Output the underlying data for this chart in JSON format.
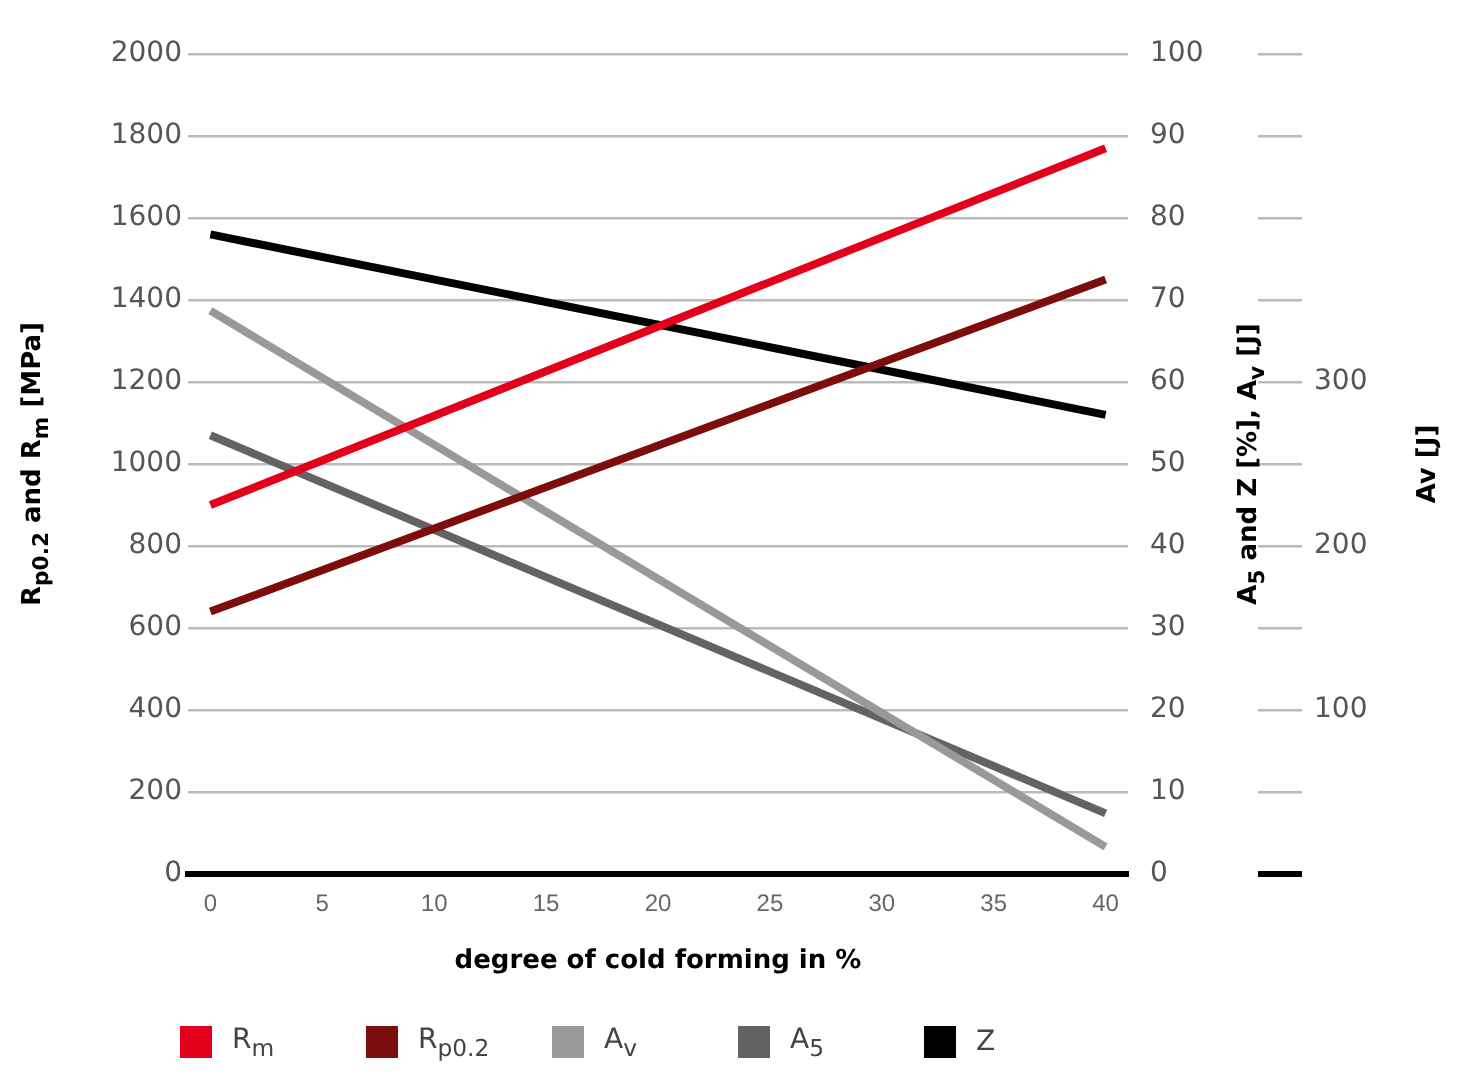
{
  "chart_data": {
    "type": "line",
    "xlabel": "degree of cold forming in %",
    "ylabel": "R$_{p0.2}$ and R$_{m}$ [MPa]",
    "y2label": "A$_{5}$ and Z [%], A$_{v}$ [J]",
    "y3label": "Av [J]",
    "xlim": [
      -1,
      41
    ],
    "xticks": [
      0,
      5,
      10,
      15,
      20,
      25,
      30,
      35,
      40
    ],
    "ylim": [
      0,
      2000
    ],
    "yticks": [
      0,
      200,
      400,
      600,
      800,
      1000,
      1200,
      1400,
      1600,
      1800,
      2000
    ],
    "y2lim": [
      0,
      100
    ],
    "y2ticks": [
      0,
      10,
      20,
      30,
      40,
      50,
      60,
      70,
      80,
      90,
      100
    ],
    "y3lim": [
      0,
      500
    ],
    "y3ticks": [
      {
        "value": 0,
        "label": null
      },
      {
        "value": 50,
        "label": null
      },
      100,
      {
        "value": 150,
        "label": null
      },
      200,
      {
        "value": 250,
        "label": null
      },
      300,
      {
        "value": 350,
        "label": null
      },
      {
        "value": 400,
        "label": null
      },
      {
        "value": 450,
        "label": null
      },
      {
        "value": 500,
        "label": null
      }
    ],
    "x": [
      0,
      40
    ],
    "grid": "y",
    "legend": "bottom",
    "marker": "none",
    "line_style": "solid",
    "series": [
      {
        "name": "R$_{m}$",
        "color": "#e2001a",
        "values": [
          900,
          1770
        ]
      },
      {
        "name": "R$_{p0.2}$",
        "color": "#7d0c0c",
        "values": [
          640,
          1450
        ]
      },
      {
        "name": "A$_{v}$",
        "color": "#999999",
        "values": [
          68.7,
          3.3
        ],
        "axis": "y2"
      },
      {
        "name": "A$_{5}$",
        "color": "#636363",
        "values": [
          53.5,
          7.4
        ],
        "axis": "y2"
      },
      {
        "name": "Z",
        "color": "#000000",
        "values": [
          78,
          56
        ],
        "axis": "y2"
      }
    ]
  }
}
